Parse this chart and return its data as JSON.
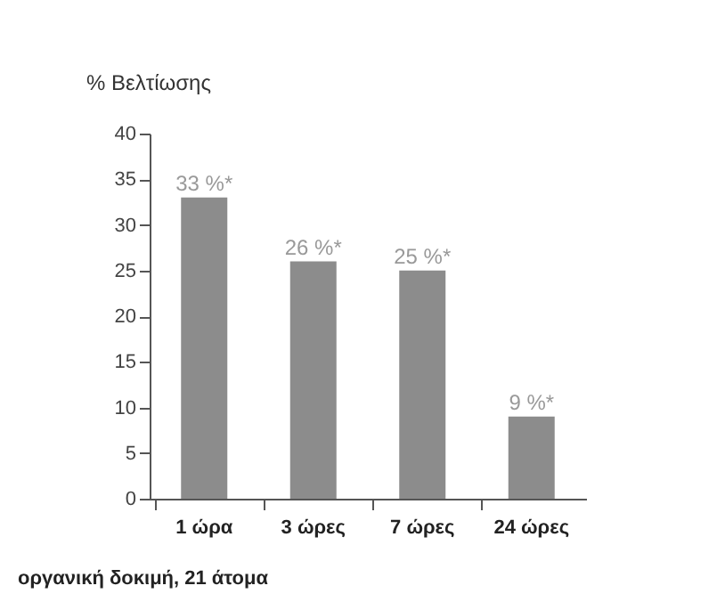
{
  "chart_data": {
    "type": "bar",
    "ylabel": "% Βελτίωσης",
    "categories": [
      "1 ώρα",
      "3 ώρες",
      "7 ώρες",
      "24 ώρες"
    ],
    "values": [
      33,
      26,
      25,
      9
    ],
    "value_labels": [
      "33 %*",
      "26 %*",
      "25 %*",
      "9 %*"
    ],
    "color": "#8c8c8c",
    "ylim": [
      0,
      40
    ],
    "yticks": [
      0,
      5,
      10,
      15,
      20,
      25,
      30,
      35,
      40
    ],
    "grid": false,
    "annotations": [
      "οργανική δοκιμή, 21 άτομα"
    ]
  }
}
